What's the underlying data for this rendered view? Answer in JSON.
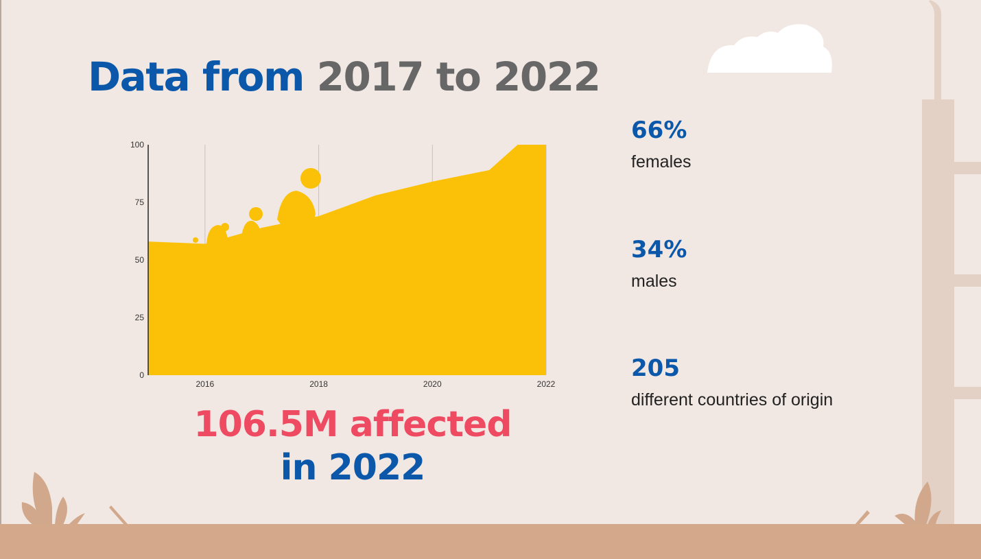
{
  "title": {
    "part1": "Data from",
    "part2": "2017 to 2022"
  },
  "chart_data": {
    "type": "area",
    "x": [
      2015,
      2016,
      2017,
      2018,
      2019,
      2020,
      2021,
      2021.5,
      2022
    ],
    "values": [
      58,
      57,
      64,
      69,
      78,
      84,
      89,
      100,
      100
    ],
    "xticks": [
      "2016",
      "2018",
      "2020",
      "2022"
    ],
    "yticks": [
      "0",
      "25",
      "50",
      "75",
      "100"
    ],
    "xlim": [
      2015,
      2022
    ],
    "ylim": [
      0,
      100
    ],
    "grid": "vertical",
    "color": "#fbc108"
  },
  "headline": {
    "line1": "106.5M affected",
    "line2": "in 2022"
  },
  "stats": [
    {
      "value": "66%",
      "label": "females"
    },
    {
      "value": "34%",
      "label": "males"
    },
    {
      "value": "205",
      "label": "different countries of origin"
    }
  ],
  "colors": {
    "blue": "#0b58aa",
    "gray": "#676767",
    "red": "#ee4a62",
    "background": "#f2e8e3",
    "ground": "#d4a88b"
  }
}
